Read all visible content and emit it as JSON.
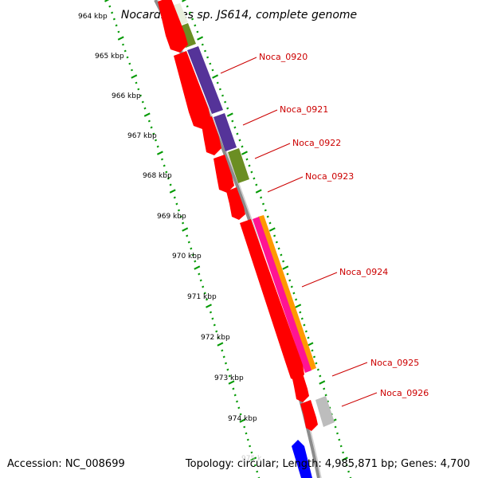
{
  "title": "Nocardioides sp. JS614, complete genome",
  "footer": {
    "accession": "Accession: NC_008699",
    "summary": "Topology: circular; Length: 4,985,871 bp; Genes: 4,700"
  },
  "colors": {
    "backbone": "#8c8c8c",
    "tick_major": "#009900",
    "tick_minor": "#009900",
    "gene_forward": "#ff0000",
    "label": "#cc0000",
    "pathway_purple": "#553399",
    "pathway_olive": "#6b8e23",
    "pathway_magenta": "#ff1493",
    "pathway_orange": "#ff9900",
    "pathway_gray": "#bdbdbd",
    "gene_reverse_blue": "#0000ff"
  },
  "axis": {
    "tick_labels": [
      "964 kbp",
      "965 kbp",
      "966 kbp",
      "967 kbp",
      "968 kbp",
      "969 kbp",
      "970 kbp",
      "971 kbp",
      "972 kbp",
      "973 kbp",
      "974 kbp"
    ]
  },
  "genes": [
    {
      "name": "Noca_0920"
    },
    {
      "name": "Noca_0921"
    },
    {
      "name": "Noca_0922"
    },
    {
      "name": "Noca_0923"
    },
    {
      "name": "Noca_0924"
    },
    {
      "name": "Noca_0925"
    },
    {
      "name": "Noca_0926"
    }
  ]
}
